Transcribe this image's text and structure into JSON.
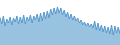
{
  "chart_data": {
    "type": "area",
    "values": [
      55,
      42,
      58,
      38,
      52,
      44,
      56,
      40,
      54,
      46,
      58,
      42,
      56,
      44,
      60,
      42,
      56,
      48,
      60,
      44,
      58,
      50,
      62,
      46,
      64,
      48,
      66,
      52,
      68,
      54,
      72,
      60,
      74,
      62,
      76,
      64,
      74,
      60,
      70,
      56,
      66,
      52,
      62,
      50,
      58,
      48,
      54,
      44,
      50,
      40,
      46,
      38,
      44,
      36,
      42,
      34,
      48,
      30,
      44,
      28,
      40,
      26,
      38,
      24,
      36,
      22,
      40,
      20,
      38,
      24,
      36,
      22
    ],
    "color": "#5599cc",
    "xlim": [
      0,
      71
    ],
    "ylim": [
      0,
      90
    ],
    "tick_labels": false,
    "grid": false
  }
}
